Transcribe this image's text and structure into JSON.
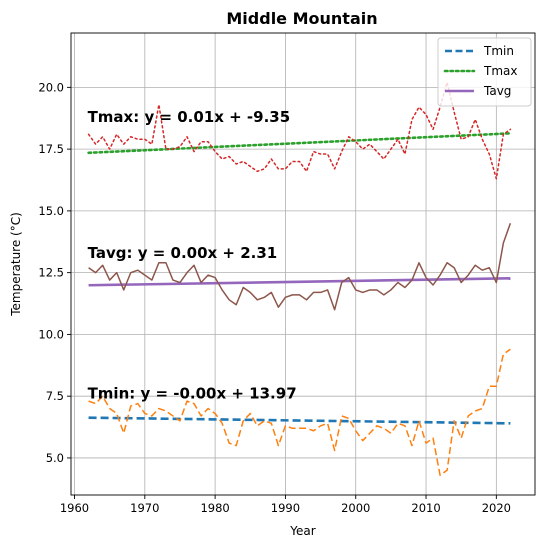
{
  "chart_data": {
    "type": "line",
    "title": "Middle Mountain",
    "xlabel": "Year",
    "ylabel": "Temperature (°C)",
    "xlim": [
      1959.5,
      2025.5
    ],
    "ylim": [
      3.5,
      22.2
    ],
    "xticks": [
      1960,
      1970,
      1980,
      1990,
      2000,
      2010,
      2020
    ],
    "xtick_labels": [
      "1960",
      "1970",
      "1980",
      "1990",
      "2000",
      "2010",
      "2020"
    ],
    "yticks": [
      5.0,
      7.5,
      10.0,
      12.5,
      15.0,
      17.5,
      20.0
    ],
    "ytick_labels": [
      "5.0",
      "7.5",
      "10.0",
      "12.5",
      "15.0",
      "17.5",
      "20.0"
    ],
    "grid": true,
    "legend_position": "top-right",
    "legend": [
      {
        "label": "Tmin",
        "color": "#1f77b4",
        "style": "dashed"
      },
      {
        "label": "Tmax",
        "color": "#2ca02c",
        "style": "dotted"
      },
      {
        "label": "Tavg",
        "color": "#9467bd",
        "style": "solid"
      }
    ],
    "annotations": [
      {
        "text": "Tmax: y = 0.01x + -9.35",
        "x": 1962,
        "y": 18.8
      },
      {
        "text": "Tavg: y = 0.00x + 2.31",
        "x": 1962,
        "y": 13.3
      },
      {
        "text": "Tmin: y = -0.00x + 13.97",
        "x": 1962,
        "y": 7.6
      }
    ],
    "x": [
      1962,
      1963,
      1964,
      1965,
      1966,
      1967,
      1968,
      1969,
      1970,
      1971,
      1972,
      1973,
      1974,
      1975,
      1976,
      1977,
      1978,
      1979,
      1980,
      1981,
      1982,
      1983,
      1984,
      1985,
      1986,
      1987,
      1988,
      1989,
      1990,
      1991,
      1992,
      1993,
      1994,
      1995,
      1996,
      1997,
      1998,
      1999,
      2000,
      2001,
      2002,
      2003,
      2004,
      2005,
      2006,
      2007,
      2008,
      2009,
      2010,
      2011,
      2012,
      2013,
      2014,
      2015,
      2016,
      2017,
      2018,
      2019,
      2020,
      2021,
      2022
    ],
    "series": [
      {
        "color": "#d62728",
        "style": "dotted",
        "values": [
          18.1,
          17.7,
          18.0,
          17.5,
          18.1,
          17.7,
          18.0,
          17.9,
          17.9,
          17.7,
          19.3,
          17.5,
          17.5,
          17.6,
          18.0,
          17.4,
          17.8,
          17.8,
          17.4,
          17.1,
          17.2,
          16.9,
          17.0,
          16.8,
          16.6,
          16.7,
          17.1,
          16.7,
          16.7,
          17.0,
          17.0,
          16.6,
          17.4,
          17.3,
          17.3,
          16.7,
          17.4,
          18.0,
          17.8,
          17.5,
          17.7,
          17.4,
          17.1,
          17.5,
          17.9,
          17.3,
          18.7,
          19.2,
          18.9,
          18.3,
          19.2,
          20.2,
          19.0,
          17.9,
          18.0,
          18.7,
          17.9,
          17.3,
          16.3,
          18.1,
          18.3
        ]
      },
      {
        "color": "#8c564b",
        "style": "solid",
        "values": [
          12.7,
          12.5,
          12.8,
          12.2,
          12.5,
          11.8,
          12.5,
          12.6,
          12.4,
          12.2,
          12.9,
          12.9,
          12.2,
          12.1,
          12.5,
          12.8,
          12.1,
          12.4,
          12.3,
          11.8,
          11.4,
          11.2,
          11.9,
          11.7,
          11.4,
          11.5,
          11.7,
          11.1,
          11.5,
          11.6,
          11.6,
          11.4,
          11.7,
          11.7,
          11.8,
          11.0,
          12.1,
          12.3,
          11.8,
          11.7,
          11.8,
          11.8,
          11.6,
          11.8,
          12.1,
          11.9,
          12.2,
          12.9,
          12.3,
          12.0,
          12.4,
          12.9,
          12.7,
          12.1,
          12.4,
          12.8,
          12.6,
          12.7,
          12.1,
          13.7,
          14.5
        ]
      },
      {
        "color": "#ff7f0e",
        "style": "dashed",
        "values": [
          7.3,
          7.2,
          7.5,
          7.0,
          6.8,
          6.0,
          7.1,
          7.2,
          6.8,
          6.7,
          7.0,
          6.9,
          6.7,
          6.5,
          7.3,
          7.2,
          6.7,
          7.0,
          6.8,
          6.4,
          5.6,
          5.5,
          6.5,
          6.8,
          6.3,
          6.5,
          6.4,
          5.5,
          6.3,
          6.2,
          6.2,
          6.2,
          6.1,
          6.3,
          6.4,
          5.3,
          6.7,
          6.6,
          6.1,
          5.7,
          6.0,
          6.3,
          6.2,
          6.0,
          6.4,
          6.3,
          5.5,
          6.5,
          5.6,
          5.8,
          4.3,
          4.5,
          6.5,
          5.8,
          6.7,
          6.9,
          7.0,
          7.9,
          7.9,
          9.2,
          9.4
        ]
      },
      {
        "name": "Tmin",
        "color": "#1f77b4",
        "style": "dashed",
        "x": [
          1962,
          2022
        ],
        "values": [
          6.63,
          6.4
        ]
      },
      {
        "name": "Tmax",
        "color": "#2ca02c",
        "style": "dotted",
        "x": [
          1962,
          2022
        ],
        "values": [
          17.35,
          18.14
        ]
      },
      {
        "name": "Tavg",
        "color": "#9467bd",
        "style": "solid",
        "x": [
          1962,
          2022
        ],
        "values": [
          11.99,
          12.27
        ]
      }
    ]
  }
}
